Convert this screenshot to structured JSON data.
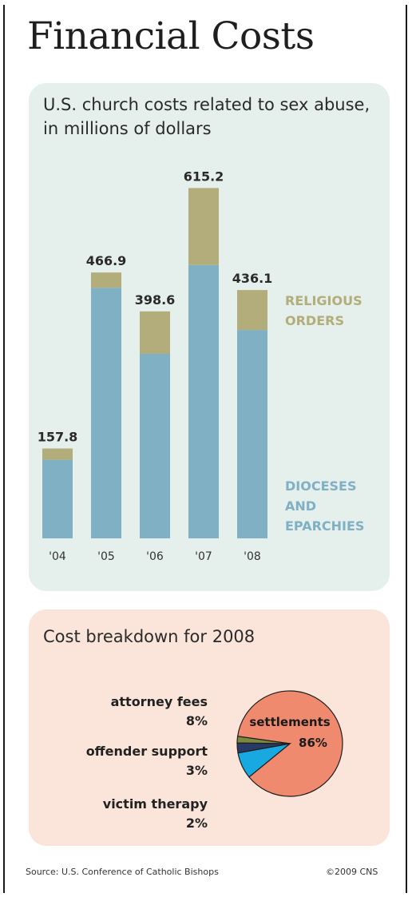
{
  "title": "Financial Costs",
  "chart_data": [
    {
      "type": "bar",
      "stacked": true,
      "title": "U.S. church costs related to sex abuse, in millions of dollars",
      "categories": [
        "'04",
        "'05",
        "'06",
        "'07",
        "'08"
      ],
      "totals": [
        "157.8",
        "466.9",
        "398.6",
        "615.2",
        "436.1"
      ],
      "series": [
        {
          "name": "DIOCESES AND EPARCHIES",
          "color": "#7fb0c4",
          "values": [
            138,
            440,
            324,
            480,
            366
          ]
        },
        {
          "name": "RELIGIOUS ORDERS",
          "color": "#b2ad7a",
          "values": [
            19.8,
            26.9,
            74.6,
            135.2,
            70.1
          ]
        }
      ],
      "ylim": [
        0,
        620
      ],
      "grid": false,
      "legend": "right"
    },
    {
      "type": "pie",
      "title": "Cost breakdown for 2008",
      "slices": [
        {
          "name": "settlements",
          "value": 86,
          "label": "86%",
          "color": "#f08a6e"
        },
        {
          "name": "attorney fees",
          "value": 8,
          "label": "8%",
          "color": "#17a9e0"
        },
        {
          "name": "offender support",
          "value": 3,
          "label": "3%",
          "color": "#283a66"
        },
        {
          "name": "victim therapy",
          "value": 2,
          "label": "2%",
          "color": "#7a8a3c"
        }
      ]
    }
  ],
  "footer": {
    "source": "Source: U.S. Conference of Catholic Bishops",
    "credit": "©2009 CNS"
  }
}
